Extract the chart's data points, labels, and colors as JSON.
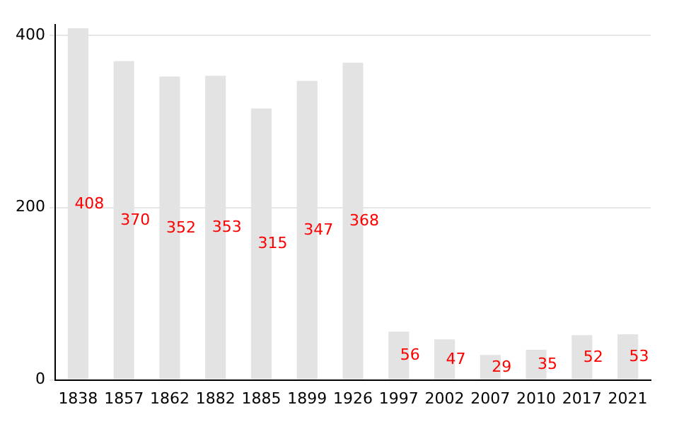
{
  "chart_data": {
    "type": "bar",
    "categories": [
      "1838",
      "1857",
      "1862",
      "1882",
      "1885",
      "1899",
      "1926",
      "1997",
      "2002",
      "2007",
      "2010",
      "2017",
      "2021"
    ],
    "values": [
      408,
      370,
      352,
      353,
      315,
      347,
      368,
      56,
      47,
      29,
      35,
      52,
      53
    ],
    "color": "#e3e3e3",
    "ylim": [
      0,
      412
    ],
    "yticks": [
      0,
      200,
      400
    ],
    "grid": "y",
    "data_labels": true
  }
}
